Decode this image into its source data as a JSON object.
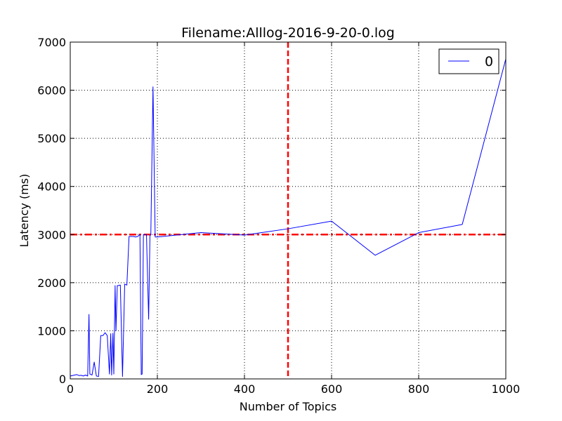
{
  "chart_data": {
    "type": "line",
    "title": "Filename:Alllog-2016-9-20-0.log",
    "xlabel": "Number of Topics",
    "ylabel": "Latency (ms)",
    "xlim": [
      0,
      1000
    ],
    "ylim": [
      0,
      7000
    ],
    "x_ticks": [
      0,
      200,
      400,
      600,
      800,
      1000
    ],
    "y_ticks": [
      0,
      1000,
      2000,
      3000,
      4000,
      5000,
      6000,
      7000
    ],
    "grid": true,
    "legend_position": "top-right",
    "series": [
      {
        "name": "0",
        "color": "#0000ff",
        "x": [
          0,
          5,
          10,
          15,
          20,
          25,
          30,
          35,
          40,
          43,
          45,
          48,
          50,
          55,
          60,
          65,
          70,
          75,
          80,
          85,
          90,
          93,
          95,
          98,
          100,
          103,
          105,
          108,
          110,
          115,
          120,
          125,
          130,
          135,
          140,
          145,
          150,
          155,
          160,
          163,
          165,
          168,
          170,
          175,
          180,
          183,
          185,
          190,
          195,
          200,
          300,
          400,
          500,
          600,
          700,
          800,
          900,
          1000
        ],
        "y": [
          60,
          70,
          80,
          90,
          70,
          75,
          60,
          80,
          60,
          1340,
          100,
          90,
          80,
          350,
          60,
          50,
          900,
          900,
          960,
          900,
          100,
          940,
          80,
          950,
          100,
          1940,
          1000,
          1940,
          1940,
          1950,
          50,
          1970,
          1950,
          2960,
          2960,
          2960,
          2950,
          2960,
          3000,
          90,
          100,
          3000,
          3000,
          3000,
          1240,
          2980,
          3000,
          6070,
          2950,
          2950,
          3040,
          2990,
          3120,
          3280,
          2570,
          3040,
          3210,
          6650
        ]
      }
    ],
    "reference_lines": [
      {
        "orientation": "horizontal",
        "value": 3000,
        "color": "#ff0000",
        "style": "dash-dot"
      },
      {
        "orientation": "vertical",
        "value": 500,
        "color": "#ff0000",
        "style": "dashed"
      }
    ]
  }
}
